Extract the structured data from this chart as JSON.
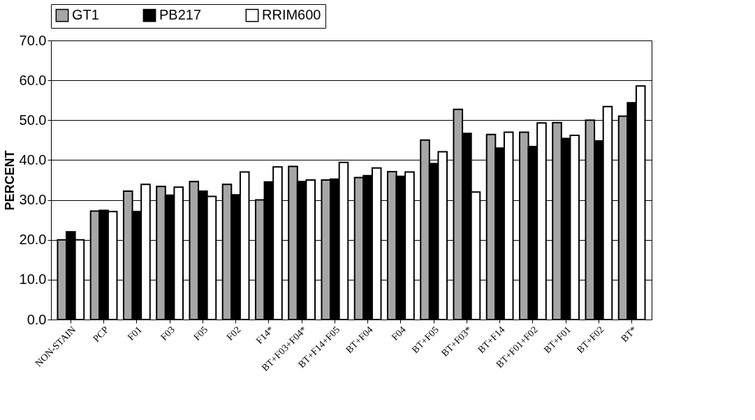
{
  "chart_data": {
    "type": "bar",
    "ylabel": "PERCENT",
    "categories": [
      "NON-STAIN",
      "PCP",
      "F01",
      "F03",
      "F05",
      "F02",
      "F14*",
      "BT+F03+F04*",
      "BT+F14+F05",
      "BT+F04",
      "F04",
      "BT+F05",
      "BT+F03*",
      "BT+F14",
      "BT+F01+F02",
      "BT+F01",
      "BT+F02",
      "BT*"
    ],
    "series": [
      {
        "name": "GT1",
        "color": "#a6a6a6",
        "values": [
          20.0,
          27.2,
          32.2,
          33.4,
          34.6,
          33.9,
          30.0,
          38.4,
          35.0,
          35.6,
          37.1,
          45.0,
          52.7,
          46.4,
          47.0,
          49.4,
          50.0,
          51.0
        ]
      },
      {
        "name": "PB217",
        "color": "#000000",
        "values": [
          22.0,
          27.4,
          27.1,
          31.2,
          32.2,
          31.3,
          34.5,
          34.6,
          35.2,
          36.1,
          35.9,
          39.1,
          46.7,
          43.0,
          43.4,
          45.4,
          44.8,
          54.4
        ]
      },
      {
        "name": "RRIM600",
        "color": "#ffffff",
        "values": [
          20.0,
          27.1,
          33.9,
          33.2,
          30.9,
          37.0,
          38.3,
          35.0,
          39.4,
          38.0,
          37.0,
          42.1,
          32.0,
          47.0,
          49.3,
          46.2,
          53.4,
          58.6
        ]
      }
    ],
    "ylim": [
      0,
      70
    ],
    "yticks": [
      {
        "value": 0,
        "label": "0.0"
      },
      {
        "value": 10,
        "label": "10.0"
      },
      {
        "value": 20,
        "label": "20.0"
      },
      {
        "value": 30,
        "label": "30.0"
      },
      {
        "value": 40,
        "label": "40.0"
      },
      {
        "value": 50,
        "label": "50.0"
      },
      {
        "value": 60,
        "label": "60.0"
      },
      {
        "value": 70,
        "label": "70.0"
      }
    ],
    "grid": "y",
    "legend": "top"
  }
}
